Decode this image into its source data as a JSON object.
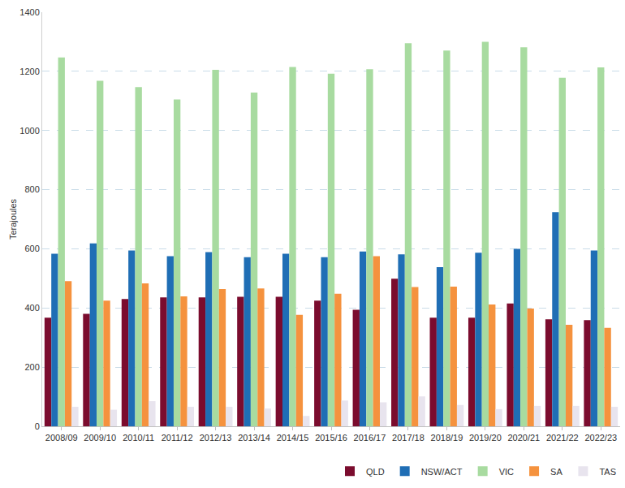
{
  "chart_data": {
    "type": "bar",
    "y_label": "Terajoules",
    "categories": [
      "2008/09",
      "2009/10",
      "2010/11",
      "2011/12",
      "2012/13",
      "2013/14",
      "2014/15",
      "2015/16",
      "2016/17",
      "2017/18",
      "2018/19",
      "2019/20",
      "2020/21",
      "2021/22",
      "2022/23"
    ],
    "series": [
      {
        "name": "QLD",
        "color": "#7b0c2e",
        "values": [
          367,
          380,
          430,
          436,
          436,
          438,
          438,
          425,
          394,
          499,
          367,
          367,
          415,
          362,
          359
        ]
      },
      {
        "name": "NSW/ACT",
        "color": "#1f6eb5",
        "values": [
          583,
          618,
          594,
          575,
          589,
          572,
          583,
          572,
          591,
          581,
          538,
          587,
          600,
          724,
          594
        ]
      },
      {
        "name": "VIC",
        "color": "#a8dba0",
        "values": [
          1247,
          1168,
          1147,
          1105,
          1205,
          1128,
          1215,
          1192,
          1207,
          1295,
          1270,
          1300,
          1281,
          1178,
          1213
        ]
      },
      {
        "name": "SA",
        "color": "#f5923e",
        "values": [
          491,
          425,
          483,
          439,
          464,
          466,
          377,
          448,
          575,
          471,
          472,
          412,
          398,
          343,
          333
        ]
      },
      {
        "name": "TAS",
        "color": "#e8e4ee",
        "values": [
          66,
          56,
          85,
          66,
          66,
          60,
          35,
          87,
          81,
          101,
          72,
          58,
          69,
          69,
          66
        ]
      }
    ],
    "ylim": [
      0,
      1400
    ],
    "yticks": [
      0,
      200,
      400,
      600,
      800,
      1000,
      1200,
      1400
    ],
    "grid": true,
    "legend": "bottom right"
  }
}
